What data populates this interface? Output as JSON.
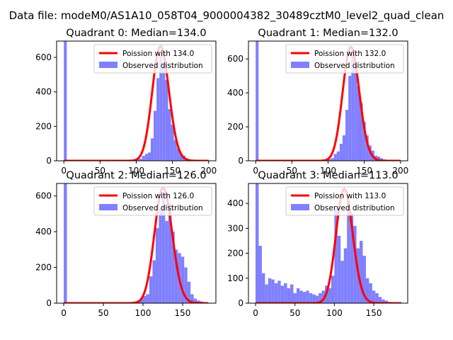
{
  "suptitle": "Data file: modeM0/AS1A10_058T04_9000004382_30489cztM0_level2_quad_clean",
  "chart_data": [
    {
      "type": "bar",
      "title": "Quadrant 0: Median=134.0",
      "xlim": [
        -10,
        210
      ],
      "ylim": [
        0,
        695
      ],
      "xticks": [
        0,
        50,
        100,
        150,
        200
      ],
      "yticks": [
        0,
        200,
        400,
        600
      ],
      "bin_width": 4,
      "bins": [
        [
          0,
          1000
        ],
        [
          84,
          2
        ],
        [
          88,
          3
        ],
        [
          92,
          4
        ],
        [
          96,
          5
        ],
        [
          100,
          8
        ],
        [
          104,
          12
        ],
        [
          108,
          28
        ],
        [
          112,
          40
        ],
        [
          116,
          48
        ],
        [
          120,
          130
        ],
        [
          124,
          290
        ],
        [
          128,
          480
        ],
        [
          132,
          620
        ],
        [
          136,
          570
        ],
        [
          140,
          470
        ],
        [
          144,
          300
        ],
        [
          148,
          210
        ],
        [
          152,
          120
        ],
        [
          156,
          75
        ],
        [
          160,
          40
        ],
        [
          164,
          30
        ],
        [
          168,
          15
        ],
        [
          172,
          8
        ],
        [
          176,
          5
        ],
        [
          180,
          4
        ],
        [
          184,
          3
        ],
        [
          188,
          3
        ],
        [
          192,
          3
        ],
        [
          196,
          2
        ],
        [
          200,
          2
        ]
      ],
      "poisson": {
        "lambda": 134.0,
        "peak": 665,
        "xmax": 200
      },
      "legend": [
        "Poission with 134.0",
        "Observed distribution"
      ],
      "legend_loc": "upper right"
    },
    {
      "type": "bar",
      "title": "Quadrant 1: Median=132.0",
      "xlim": [
        -10,
        210
      ],
      "ylim": [
        0,
        705
      ],
      "xticks": [
        0,
        50,
        100,
        150,
        200
      ],
      "yticks": [
        0,
        200,
        400,
        600
      ],
      "bin_width": 4,
      "bins": [
        [
          0,
          1000
        ],
        [
          84,
          2
        ],
        [
          88,
          3
        ],
        [
          92,
          4
        ],
        [
          96,
          5
        ],
        [
          100,
          10
        ],
        [
          104,
          15
        ],
        [
          108,
          40
        ],
        [
          112,
          55
        ],
        [
          116,
          100
        ],
        [
          120,
          150
        ],
        [
          124,
          300
        ],
        [
          128,
          500
        ],
        [
          132,
          650
        ],
        [
          136,
          560
        ],
        [
          140,
          440
        ],
        [
          144,
          340
        ],
        [
          148,
          230
        ],
        [
          152,
          150
        ],
        [
          156,
          90
        ],
        [
          160,
          60
        ],
        [
          164,
          30
        ],
        [
          168,
          25
        ],
        [
          172,
          15
        ],
        [
          176,
          8
        ],
        [
          180,
          5
        ],
        [
          184,
          4
        ],
        [
          188,
          3
        ],
        [
          192,
          3
        ],
        [
          196,
          2
        ],
        [
          200,
          2
        ]
      ],
      "poisson": {
        "lambda": 132.0,
        "peak": 670,
        "xmax": 200
      },
      "legend": [
        "Poission with 132.0",
        "Observed distribution"
      ],
      "legend_loc": "upper right"
    },
    {
      "type": "bar",
      "title": "Quadrant 2: Median=126.0",
      "xlim": [
        -9,
        192
      ],
      "ylim": [
        0,
        670
      ],
      "xticks": [
        0,
        50,
        100,
        150
      ],
      "yticks": [
        0,
        200,
        400,
        600
      ],
      "bin_width": 4,
      "bins": [
        [
          0,
          1000
        ],
        [
          72,
          3
        ],
        [
          76,
          4
        ],
        [
          80,
          5
        ],
        [
          84,
          6
        ],
        [
          88,
          10
        ],
        [
          92,
          15
        ],
        [
          96,
          25
        ],
        [
          100,
          40
        ],
        [
          104,
          50
        ],
        [
          108,
          150
        ],
        [
          112,
          240
        ],
        [
          116,
          420
        ],
        [
          120,
          530
        ],
        [
          124,
          620
        ],
        [
          128,
          460
        ],
        [
          132,
          560
        ],
        [
          136,
          400
        ],
        [
          140,
          300
        ],
        [
          144,
          280
        ],
        [
          148,
          260
        ],
        [
          152,
          200
        ],
        [
          156,
          120
        ],
        [
          160,
          50
        ],
        [
          164,
          25
        ],
        [
          168,
          15
        ],
        [
          172,
          10
        ],
        [
          176,
          5
        ],
        [
          180,
          3
        ]
      ],
      "poisson": {
        "lambda": 126.0,
        "peak": 645,
        "xmax": 182
      },
      "legend": [
        "Poission with 126.0",
        "Observed distribution"
      ],
      "legend_loc": "upper right"
    },
    {
      "type": "bar",
      "title": "Quadrant 3: Median=113.0",
      "xlim": [
        -9,
        193
      ],
      "ylim": [
        0,
        480
      ],
      "xticks": [
        0,
        50,
        100,
        150
      ],
      "yticks": [
        0,
        100,
        200,
        300,
        400
      ],
      "bin_width": 4,
      "bins": [
        [
          0,
          1000
        ],
        [
          4,
          230
        ],
        [
          8,
          120
        ],
        [
          12,
          75
        ],
        [
          16,
          100
        ],
        [
          20,
          95
        ],
        [
          24,
          80
        ],
        [
          28,
          90
        ],
        [
          32,
          70
        ],
        [
          36,
          80
        ],
        [
          40,
          60
        ],
        [
          44,
          75
        ],
        [
          48,
          40
        ],
        [
          52,
          60
        ],
        [
          56,
          50
        ],
        [
          60,
          45
        ],
        [
          64,
          50
        ],
        [
          68,
          40
        ],
        [
          72,
          35
        ],
        [
          76,
          30
        ],
        [
          80,
          40
        ],
        [
          84,
          50
        ],
        [
          88,
          70
        ],
        [
          92,
          60
        ],
        [
          96,
          110
        ],
        [
          100,
          380
        ],
        [
          104,
          270
        ],
        [
          108,
          170
        ],
        [
          112,
          220
        ],
        [
          116,
          410
        ],
        [
          120,
          360
        ],
        [
          124,
          310
        ],
        [
          128,
          220
        ],
        [
          132,
          250
        ],
        [
          136,
          190
        ],
        [
          140,
          100
        ],
        [
          144,
          80
        ],
        [
          148,
          50
        ],
        [
          152,
          40
        ],
        [
          156,
          25
        ],
        [
          160,
          15
        ],
        [
          164,
          10
        ],
        [
          168,
          5
        ],
        [
          172,
          3
        ],
        [
          176,
          2
        ],
        [
          180,
          2
        ]
      ],
      "poisson": {
        "lambda": 113.0,
        "peak": 458,
        "xmax": 185
      },
      "legend": [
        "Poission with 113.0",
        "Observed distribution"
      ],
      "legend_loc": "upper right"
    }
  ],
  "colors": {
    "bars": "#8080ff",
    "poisson": "#ff0000",
    "frame": "#000000",
    "text": "#000000"
  }
}
